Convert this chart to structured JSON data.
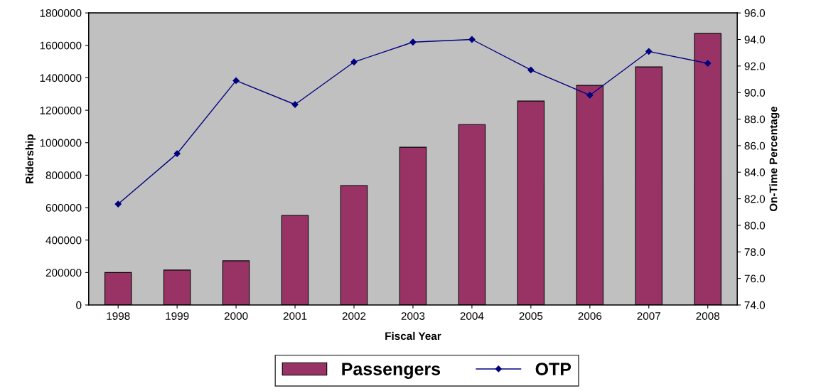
{
  "chart_data": {
    "type": "bar",
    "categories": [
      "1998",
      "1999",
      "2000",
      "2001",
      "2002",
      "2003",
      "2004",
      "2005",
      "2006",
      "2007",
      "2008"
    ],
    "xlabel": "Fiscal Year",
    "ylabel": "Ridership",
    "y2label": "On-Time Percentage",
    "series": [
      {
        "name": "Passengers",
        "color": "#993366",
        "values": [
          200000,
          215000,
          272000,
          552000,
          736000,
          972000,
          1112000,
          1257000,
          1353000,
          1467000,
          1673000
        ]
      },
      {
        "name": "OTP",
        "type": "line",
        "axis": "y2",
        "color": "#000080",
        "marker": "diamond",
        "line_style": "solid",
        "values": [
          81.6,
          85.4,
          90.9,
          89.1,
          92.3,
          93.8,
          94.0,
          91.7,
          89.8,
          93.1,
          92.2
        ]
      }
    ],
    "ylim": [
      0,
      1800000
    ],
    "yticks": [
      0,
      200000,
      400000,
      600000,
      800000,
      1000000,
      1200000,
      1400000,
      1600000,
      1800000
    ],
    "y2lim": [
      74,
      96
    ],
    "y2ticks": [
      {
        "value": 74,
        "label": "74.0"
      },
      {
        "value": 76,
        "label": "76.0"
      },
      {
        "value": 78,
        "label": "78.0"
      },
      {
        "value": 80,
        "label": "80.0"
      },
      {
        "value": 82,
        "label": "82.0"
      },
      {
        "value": 84,
        "label": "84.0"
      },
      {
        "value": 86,
        "label": "86.0"
      },
      {
        "value": 88,
        "label": "88.0"
      },
      {
        "value": 90,
        "label": "90.0"
      },
      {
        "value": 92,
        "label": "92.0"
      },
      {
        "value": 94,
        "label": "94.0"
      },
      {
        "value": 96,
        "label": "96.0"
      }
    ],
    "grid": false,
    "legend": "bottom"
  }
}
